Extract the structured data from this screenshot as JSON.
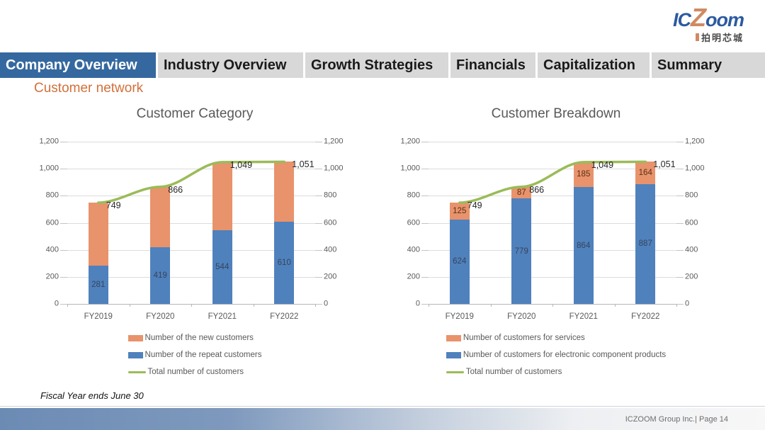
{
  "logo": {
    "ic": "IC",
    "z": "Z",
    "oom": "oom",
    "subtitle": "拍明芯城"
  },
  "tabs": [
    {
      "label": "Company Overview",
      "active": true
    },
    {
      "label": "Industry Overview",
      "active": false
    },
    {
      "label": "Growth Strategies",
      "active": false
    },
    {
      "label": "Financials",
      "active": false
    },
    {
      "label": "Capitalization",
      "active": false
    },
    {
      "label": "Summary",
      "active": false
    }
  ],
  "page_title": "Customer network",
  "footnote": "Fiscal Year ends June 30",
  "footer": "ICZOOM Group Inc.| Page 14",
  "colors": {
    "bar_blue": "#4F81BD",
    "bar_orange": "#E8936C",
    "line_green": "#9BBB59",
    "tab_active_bg": "#35689F",
    "tab_inactive_bg": "#D8D8D8",
    "heading_orange": "#D2703A",
    "logo_blue": "#2C5AA0",
    "logo_orange": "#D08A63"
  },
  "chart_data": [
    {
      "type": "bar",
      "stacked": true,
      "title": "Customer Category",
      "categories": [
        "FY2019",
        "FY2020",
        "FY2021",
        "FY2022"
      ],
      "series": [
        {
          "name": "Number of the repeat customers",
          "role": "bar",
          "color": "#4F81BD",
          "values": [
            281,
            419,
            544,
            610
          ],
          "data_labels": [
            "281",
            "419",
            "544",
            "610"
          ],
          "label_color": "#35455B"
        },
        {
          "name": "Number of the new customers",
          "role": "bar",
          "color": "#E8936C",
          "values": [
            468,
            447,
            505,
            441
          ],
          "data_labels": null,
          "label_color": "#5B3013"
        },
        {
          "name": "Total number of customers",
          "role": "line",
          "color": "#9BBB59",
          "values": [
            749,
            866,
            1049,
            1051
          ],
          "data_labels": [
            "749",
            "866",
            "1,049",
            "1,051"
          ],
          "label_color": "#262626"
        }
      ],
      "y_axis": {
        "min": 0,
        "max": 1200,
        "step": 200,
        "tick_labels": [
          "0",
          "200",
          "400",
          "600",
          "800",
          "1,000",
          "1,200"
        ],
        "secondary_axis": true
      },
      "grid": true,
      "legend_position": "bottom",
      "legend": [
        {
          "swatch": "bar",
          "color": "#E8936C",
          "label": "Number of the new customers"
        },
        {
          "swatch": "bar",
          "color": "#4F81BD",
          "label": "Number of the repeat customers"
        },
        {
          "swatch": "line",
          "color": "#9BBB59",
          "label": "Total number of customers"
        }
      ]
    },
    {
      "type": "bar",
      "stacked": true,
      "title": "Customer Breakdown",
      "categories": [
        "FY2019",
        "FY2020",
        "FY2021",
        "FY2022"
      ],
      "series": [
        {
          "name": "Number of customers for electronic component products",
          "role": "bar",
          "color": "#4F81BD",
          "values": [
            624,
            779,
            864,
            887
          ],
          "data_labels": [
            "624",
            "779",
            "864",
            "887"
          ],
          "label_color": "#35455B"
        },
        {
          "name": "Number of customers for services",
          "role": "bar",
          "color": "#E8936C",
          "values": [
            125,
            87,
            185,
            164
          ],
          "data_labels": [
            "125",
            "87",
            "185",
            "164"
          ],
          "label_color": "#5B3013"
        },
        {
          "name": "Total number of customers",
          "role": "line",
          "color": "#9BBB59",
          "values": [
            749,
            866,
            1049,
            1051
          ],
          "data_labels": [
            "749",
            "866",
            "1,049",
            "1,051"
          ],
          "label_color": "#262626"
        }
      ],
      "y_axis": {
        "min": 0,
        "max": 1200,
        "step": 200,
        "tick_labels": [
          "0",
          "200",
          "400",
          "600",
          "800",
          "1,000",
          "1,200"
        ],
        "secondary_axis": true
      },
      "grid": true,
      "legend_position": "bottom",
      "legend": [
        {
          "swatch": "bar",
          "color": "#E8936C",
          "label": "Number of customers for services"
        },
        {
          "swatch": "bar",
          "color": "#4F81BD",
          "label": "Number of customers for electronic component products"
        },
        {
          "swatch": "line",
          "color": "#9BBB59",
          "label": "Total number of customers"
        }
      ]
    }
  ]
}
